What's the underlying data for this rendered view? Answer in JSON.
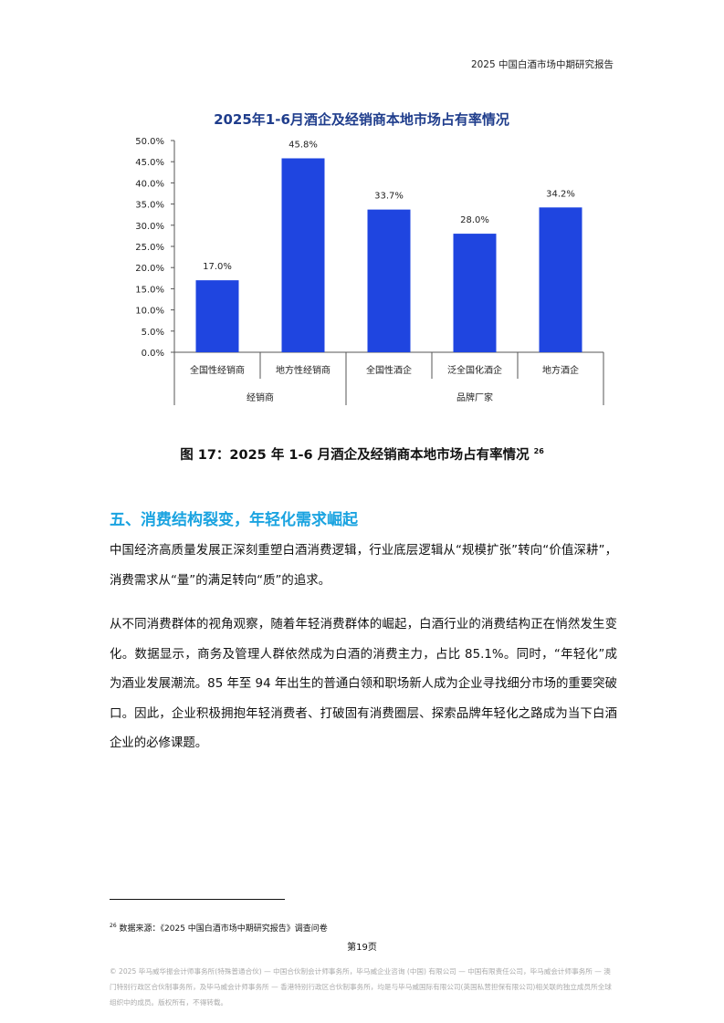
{
  "header": {
    "title": "2025 中国白酒市场中期研究报告"
  },
  "chart_data": {
    "type": "bar",
    "title": "2025年1-6月酒企及经销商本地市场占有率情况",
    "categories": [
      "全国性经销商",
      "地方性经销商",
      "全国性酒企",
      "泛全国化酒企",
      "地方酒企"
    ],
    "groups": [
      {
        "label": "经销商",
        "categories": 2
      },
      {
        "label": "品牌厂家",
        "categories": 3
      }
    ],
    "values": [
      17.0,
      45.8,
      33.7,
      28.0,
      34.2
    ],
    "data_labels": [
      "17.0%",
      "45.8%",
      "33.7%",
      "28.0%",
      "34.2%"
    ],
    "ylim": [
      0,
      50
    ],
    "yticks": [
      "0.0%",
      "5.0%",
      "10.0%",
      "15.0%",
      "20.0%",
      "25.0%",
      "30.0%",
      "35.0%",
      "40.0%",
      "45.0%",
      "50.0%"
    ],
    "bar_color": "#1f45e0",
    "title_color": "#1f3d8c",
    "grid": false
  },
  "caption": {
    "text": "图 17：2025 年 1-6 月酒企及经销商本地市场占有率情况",
    "ref": "26"
  },
  "section": {
    "title": "五、消费结构裂变，年轻化需求崛起",
    "color": "#1aa3e0"
  },
  "paragraphs": [
    "中国经济高质量发展正深刻重塑白酒消费逻辑，行业底层逻辑从“规模扩张”转向“价值深耕”，消费需求从“量”的满足转向“质”的追求。",
    "从不同消费群体的视角观察，随着年轻消费群体的崛起，白酒行业的消费结构正在悄然发生变化。数据显示，商务及管理人群依然成为白酒的消费主力，占比 85.1%。同时，“年轻化”成为酒业发展潮流。85 年至 94 年出生的普通白领和职场新人成为企业寻找细分市场的重要突破口。因此，企业积极拥抱年轻消费者、打破固有消费圈层、探索品牌年轻化之路成为当下白酒企业的必修课题。"
  ],
  "footnote": {
    "ref": "26",
    "text": "数据来源：《2025 中国白酒市场中期研究报告》调查问卷"
  },
  "page_number": "第19页",
  "copyright": "© 2025 毕马威华振会计师事务所(特殊普通合伙) — 中国合伙制会计师事务所，毕马威企业咨询 (中国) 有限公司 — 中国有限责任公司，毕马威会计师事务所 — 澳门特别行政区合伙制事务所，及毕马威会计师事务所 — 香港特别行政区合伙制事务所，均是与毕马威国际有限公司(英国私营担保有限公司)相关联的独立成员所全球组织中的成员。版权所有，不得转载。"
}
